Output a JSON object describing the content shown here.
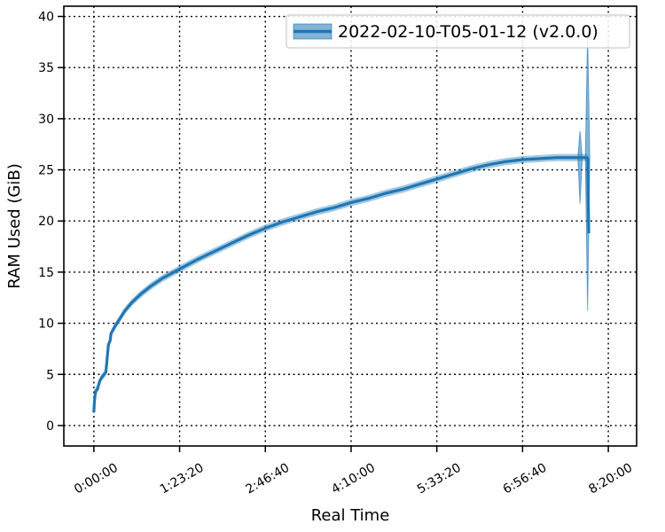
{
  "chart_data": {
    "type": "line",
    "xlabel": "Real Time",
    "ylabel": "RAM Used (GiB)",
    "xlim": [
      -1750,
      31650
    ],
    "ylim": [
      -2,
      41
    ],
    "x_ticks": [
      0,
      5000,
      10000,
      15000,
      20000,
      25000,
      30000
    ],
    "x_tick_labels": [
      "0:00:00",
      "1:23:20",
      "2:46:40",
      "4:10:00",
      "5:33:20",
      "6:56:40",
      "8:20:00"
    ],
    "y_ticks": [
      0,
      5,
      10,
      15,
      20,
      25,
      30,
      35,
      40
    ],
    "y_tick_labels": [
      "0",
      "5",
      "10",
      "15",
      "20",
      "25",
      "30",
      "35",
      "40"
    ],
    "grid": true,
    "legend_position": "top-right",
    "color": "#1f77b4",
    "series": [
      {
        "name": "2022-02-10-T05-01-12 (v2.0.0)",
        "x": [
          0,
          30,
          100,
          200,
          350,
          500,
          600,
          700,
          850,
          900,
          950,
          1000,
          1100,
          1200,
          1300,
          1500,
          1800,
          2200,
          2700,
          3300,
          4000,
          5000,
          6000,
          7000,
          8000,
          9000,
          10000,
          11000,
          12000,
          13000,
          14000,
          15000,
          16000,
          17000,
          18000,
          19000,
          20000,
          21000,
          22000,
          23000,
          24000,
          25000,
          26000,
          27000,
          28000,
          28600,
          28700,
          28760,
          28800,
          28830,
          28860
        ],
        "y": [
          1.3,
          2.3,
          3.4,
          3.5,
          4.4,
          4.8,
          5.0,
          5.2,
          7.9,
          8.1,
          8.3,
          9.0,
          9.3,
          9.6,
          9.9,
          10.4,
          11.2,
          12.0,
          12.8,
          13.6,
          14.4,
          15.3,
          16.2,
          17.0,
          17.8,
          18.6,
          19.3,
          19.9,
          20.4,
          20.9,
          21.3,
          21.8,
          22.2,
          22.7,
          23.1,
          23.6,
          24.1,
          24.6,
          25.1,
          25.5,
          25.8,
          26.0,
          26.1,
          26.2,
          26.2,
          26.2,
          26.2,
          26.2,
          26.1,
          22.0,
          18.8
        ],
        "band": [
          {
            "x": 28350,
            "low": 21.7,
            "high": 28.8
          },
          {
            "x": 28790,
            "low": 11.2,
            "high": 38.5
          }
        ]
      }
    ]
  }
}
